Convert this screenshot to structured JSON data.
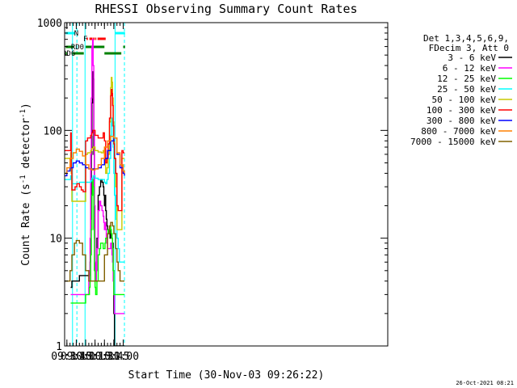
{
  "chart_data": {
    "type": "line",
    "title": "RHESSI Observing Summary Count Rates",
    "xlabel": "Start Time (30-Nov-03 09:26:22)",
    "ylabel": "Count Rate (s^-1 detector^-1)",
    "ylabel_main": "Count Rate (s",
    "ylabel_sup1": "-1",
    "ylabel_mid": " detector",
    "ylabel_sup2": "-1",
    "ylabel_end": ")",
    "yscale": "log",
    "ylim": [
      1,
      1000
    ],
    "xlim_minutes": [
      566.37,
      1083
    ],
    "xlim": [
      "09:26:22",
      "11:03:00"
    ],
    "x_ticks": [
      {
        "label": "09:30",
        "min": 570
      },
      {
        "label": "09:45",
        "min": 585
      },
      {
        "label": "10:00",
        "min": 600
      },
      {
        "label": "10:15",
        "min": 615
      },
      {
        "label": "10:30",
        "min": 630
      },
      {
        "label": "10:45",
        "min": 645
      },
      {
        "label": "11:00",
        "min": 660
      }
    ],
    "y_ticks": [
      {
        "label": "1",
        "value": 1
      },
      {
        "label": "10",
        "value": 10
      },
      {
        "label": "100",
        "value": 100
      },
      {
        "label": "1000",
        "value": 1000
      }
    ],
    "legend": {
      "placement": "right",
      "header": [
        "Det 1,3,4,5,6,9,",
        "FDecim 3, Att 0"
      ]
    },
    "series": [
      {
        "name": "3 - 6 keV",
        "color": "#000000",
        "x": [
          576,
          578,
          583,
          586,
          590,
          593,
          596,
          598,
          600,
          603,
          605,
          606,
          607,
          608,
          609,
          610,
          611,
          612,
          613,
          614,
          615,
          616,
          617,
          618,
          620,
          622,
          624,
          626,
          628,
          629,
          630,
          631,
          632,
          633,
          634,
          635,
          636,
          637,
          638,
          639,
          640,
          641,
          642,
          643,
          644,
          645,
          646,
          647,
          648,
          650,
          652,
          654,
          656,
          658,
          660,
          662
        ],
        "y": [
          3.5,
          4,
          4,
          4,
          4.5,
          4.5,
          4.5,
          4.5,
          4.5,
          4.5,
          4.5,
          5,
          6,
          15,
          60,
          180,
          350,
          300,
          60,
          10,
          5,
          4,
          5,
          10,
          25,
          30,
          35,
          33,
          30,
          25,
          20,
          25,
          18,
          15,
          13,
          12,
          12,
          11,
          11,
          10,
          12,
          11,
          10,
          9,
          5,
          2,
          1,
          1,
          1,
          1,
          1,
          1,
          1,
          1,
          1,
          1
        ]
      },
      {
        "name": "6 - 12 keV",
        "color": "#ff00ff",
        "x": [
          576,
          578,
          583,
          586,
          590,
          593,
          596,
          598,
          600,
          603,
          605,
          606,
          607,
          608,
          609,
          610,
          611,
          612,
          613,
          614,
          615,
          616,
          617,
          618,
          620,
          622,
          624,
          626,
          628,
          629,
          630,
          631,
          632,
          633,
          634,
          635,
          636,
          637,
          638,
          639,
          640,
          641,
          642,
          643,
          644,
          645,
          646,
          647,
          648,
          650,
          652,
          654,
          656,
          658,
          660,
          662
        ],
        "y": [
          3,
          3,
          3,
          3,
          3,
          3,
          3,
          3,
          3,
          3,
          4,
          5,
          10,
          60,
          200,
          600,
          700,
          400,
          100,
          20,
          6,
          4,
          5,
          8,
          18,
          22,
          20,
          18,
          16,
          14,
          12,
          14,
          12,
          10,
          9,
          8,
          8,
          8,
          8,
          8,
          9,
          8,
          7,
          6,
          4,
          3,
          2,
          2,
          2,
          2,
          2,
          2,
          2,
          2,
          2,
          2
        ]
      },
      {
        "name": "12 - 25 keV",
        "color": "#00ff00",
        "x": [
          576,
          578,
          583,
          586,
          590,
          593,
          596,
          598,
          600,
          603,
          605,
          606,
          607,
          608,
          609,
          610,
          611,
          612,
          613,
          614,
          615,
          616,
          617,
          618,
          620,
          622,
          624,
          626,
          628,
          629,
          630,
          631,
          632,
          633,
          634,
          635,
          636,
          637,
          638,
          639,
          640,
          641,
          642,
          643,
          644,
          645,
          646,
          647,
          648,
          650,
          652,
          654,
          656,
          658,
          660,
          662
        ],
        "y": [
          2.5,
          2.5,
          2.5,
          2.5,
          2.5,
          2.5,
          2.5,
          2.5,
          3,
          3,
          3,
          3.5,
          4,
          7,
          12,
          25,
          35,
          30,
          12,
          5,
          3.5,
          3,
          3,
          4,
          7,
          8,
          9,
          9,
          8,
          8,
          8,
          9,
          10,
          10,
          10,
          11,
          12,
          12,
          12,
          13,
          12,
          11,
          10,
          8,
          5,
          3,
          3,
          3,
          3,
          3,
          3,
          3,
          3,
          3,
          3,
          3
        ]
      },
      {
        "name": "25 - 50 keV",
        "color": "#00ffff",
        "x": [
          566,
          576,
          577,
          578,
          583,
          586,
          590,
          593,
          596,
          598,
          599,
          600,
          603,
          608,
          610,
          612,
          615,
          620,
          625,
          628,
          630,
          632,
          634,
          636,
          638,
          640,
          641,
          642,
          643,
          644,
          645,
          646,
          648,
          650,
          652,
          654,
          656,
          658,
          660,
          662
        ],
        "y": [
          35,
          38,
          35,
          32,
          32,
          32,
          33,
          33,
          33,
          33,
          33,
          33,
          33,
          34,
          36,
          38,
          36,
          35,
          35,
          35,
          33,
          32,
          35,
          40,
          55,
          90,
          120,
          130,
          110,
          70,
          40,
          25,
          15,
          10,
          8,
          6,
          6,
          6,
          6,
          6
        ]
      },
      {
        "name": "50 - 100 keV",
        "color": "#c8c800",
        "x": [
          566,
          576,
          577,
          578,
          583,
          586,
          590,
          593,
          596,
          598,
          599,
          600,
          603,
          608,
          610,
          612,
          615,
          620,
          625,
          628,
          630,
          632,
          634,
          636,
          638,
          640,
          641,
          642,
          643,
          644,
          645,
          646,
          648,
          650,
          652,
          654,
          656,
          658,
          660,
          662
        ],
        "y": [
          55,
          62,
          40,
          22,
          22,
          22,
          22,
          22,
          22,
          22,
          22,
          60,
          62,
          65,
          68,
          70,
          65,
          63,
          62,
          65,
          60,
          40,
          45,
          60,
          120,
          250,
          310,
          280,
          200,
          120,
          80,
          55,
          30,
          12,
          12,
          12,
          12,
          55,
          55,
          55
        ]
      },
      {
        "name": "100 - 300 keV",
        "color": "#ff0000",
        "x": [
          566,
          576,
          577,
          578,
          583,
          586,
          590,
          593,
          596,
          598,
          599,
          600,
          603,
          608,
          610,
          612,
          615,
          620,
          625,
          628,
          630,
          632,
          634,
          636,
          638,
          640,
          641,
          642,
          643,
          644,
          645,
          646,
          648,
          650,
          652,
          654,
          656,
          658,
          660,
          662
        ],
        "y": [
          65,
          95,
          45,
          28,
          30,
          32,
          30,
          28,
          27,
          27,
          27,
          80,
          85,
          90,
          95,
          100,
          90,
          85,
          85,
          95,
          80,
          50,
          55,
          75,
          130,
          210,
          240,
          220,
          170,
          110,
          75,
          55,
          40,
          20,
          18,
          18,
          18,
          65,
          62,
          62
        ]
      },
      {
        "name": "300 - 800 keV",
        "color": "#0000ff",
        "x": [
          566,
          570,
          575,
          580,
          585,
          590,
          595,
          600,
          605,
          610,
          615,
          620,
          625,
          630,
          635,
          640,
          645,
          650,
          655,
          660,
          662
        ],
        "y": [
          38,
          42,
          45,
          50,
          52,
          50,
          48,
          45,
          44,
          44,
          44,
          45,
          48,
          55,
          65,
          80,
          85,
          60,
          45,
          40,
          38
        ]
      },
      {
        "name": "800 - 7000 keV",
        "color": "#ff8000",
        "x": [
          566,
          570,
          575,
          580,
          585,
          590,
          595,
          600,
          605,
          610,
          615,
          620,
          625,
          630,
          635,
          640,
          645,
          650,
          655,
          660,
          662
        ],
        "y": [
          40,
          45,
          55,
          62,
          67,
          64,
          58,
          48,
          44,
          43,
          44,
          48,
          55,
          70,
          80,
          88,
          85,
          62,
          48,
          42,
          40
        ]
      },
      {
        "name": "7000 - 15000 keV",
        "color": "#806000",
        "x": [
          566,
          570,
          575,
          578,
          582,
          585,
          590,
          595,
          600,
          605,
          610,
          615,
          620,
          625,
          630,
          635,
          638,
          640,
          643,
          645,
          648,
          650,
          652,
          655,
          658,
          660,
          662
        ],
        "y": [
          4,
          4,
          5,
          7,
          9,
          9.5,
          9,
          7,
          5,
          4,
          4,
          4,
          4,
          4,
          7,
          11,
          13,
          14,
          13,
          11,
          8,
          6,
          5,
          4,
          4,
          4,
          4
        ]
      }
    ],
    "bars": [
      {
        "label": "N",
        "color": "#00ffff",
        "segments": [
          [
            568,
            583
          ]
        ],
        "label_at": 585
      },
      {
        "label": "",
        "color": "#00ffff",
        "segments": [
          [
            647,
            663
          ]
        ]
      },
      {
        "label": "F",
        "color": "#ff0000",
        "segments": [
          [
            601.5,
            603.5
          ],
          [
            606,
            611
          ],
          [
            612,
            614.5
          ],
          [
            615.5,
            617
          ],
          [
            619,
            632
          ]
        ],
        "label_at": 599.5
      },
      {
        "label": "RD0",
        "color": "#008000",
        "segments": [
          [
            568,
            581
          ],
          [
            600,
            630
          ],
          [
            660,
            663
          ]
        ],
        "label_at": 587
      },
      {
        "label": "RD6",
        "color": "#008000",
        "segments": [
          [
            568,
            570
          ],
          [
            579,
            597
          ],
          [
            630,
            657
          ]
        ],
        "label_at": 573
      }
    ],
    "vlines": [
      {
        "min": 579,
        "color": "#00ffff",
        "style": "solid"
      },
      {
        "min": 586,
        "color": "#00ffff",
        "style": "dashed"
      },
      {
        "min": 599,
        "color": "#00ffff",
        "style": "solid"
      },
      {
        "min": 647,
        "color": "#00ffff",
        "style": "solid"
      },
      {
        "min": 662,
        "color": "#00ffff",
        "style": "dashed"
      }
    ]
  },
  "timestamp": "26-Oct-2021 08:21"
}
